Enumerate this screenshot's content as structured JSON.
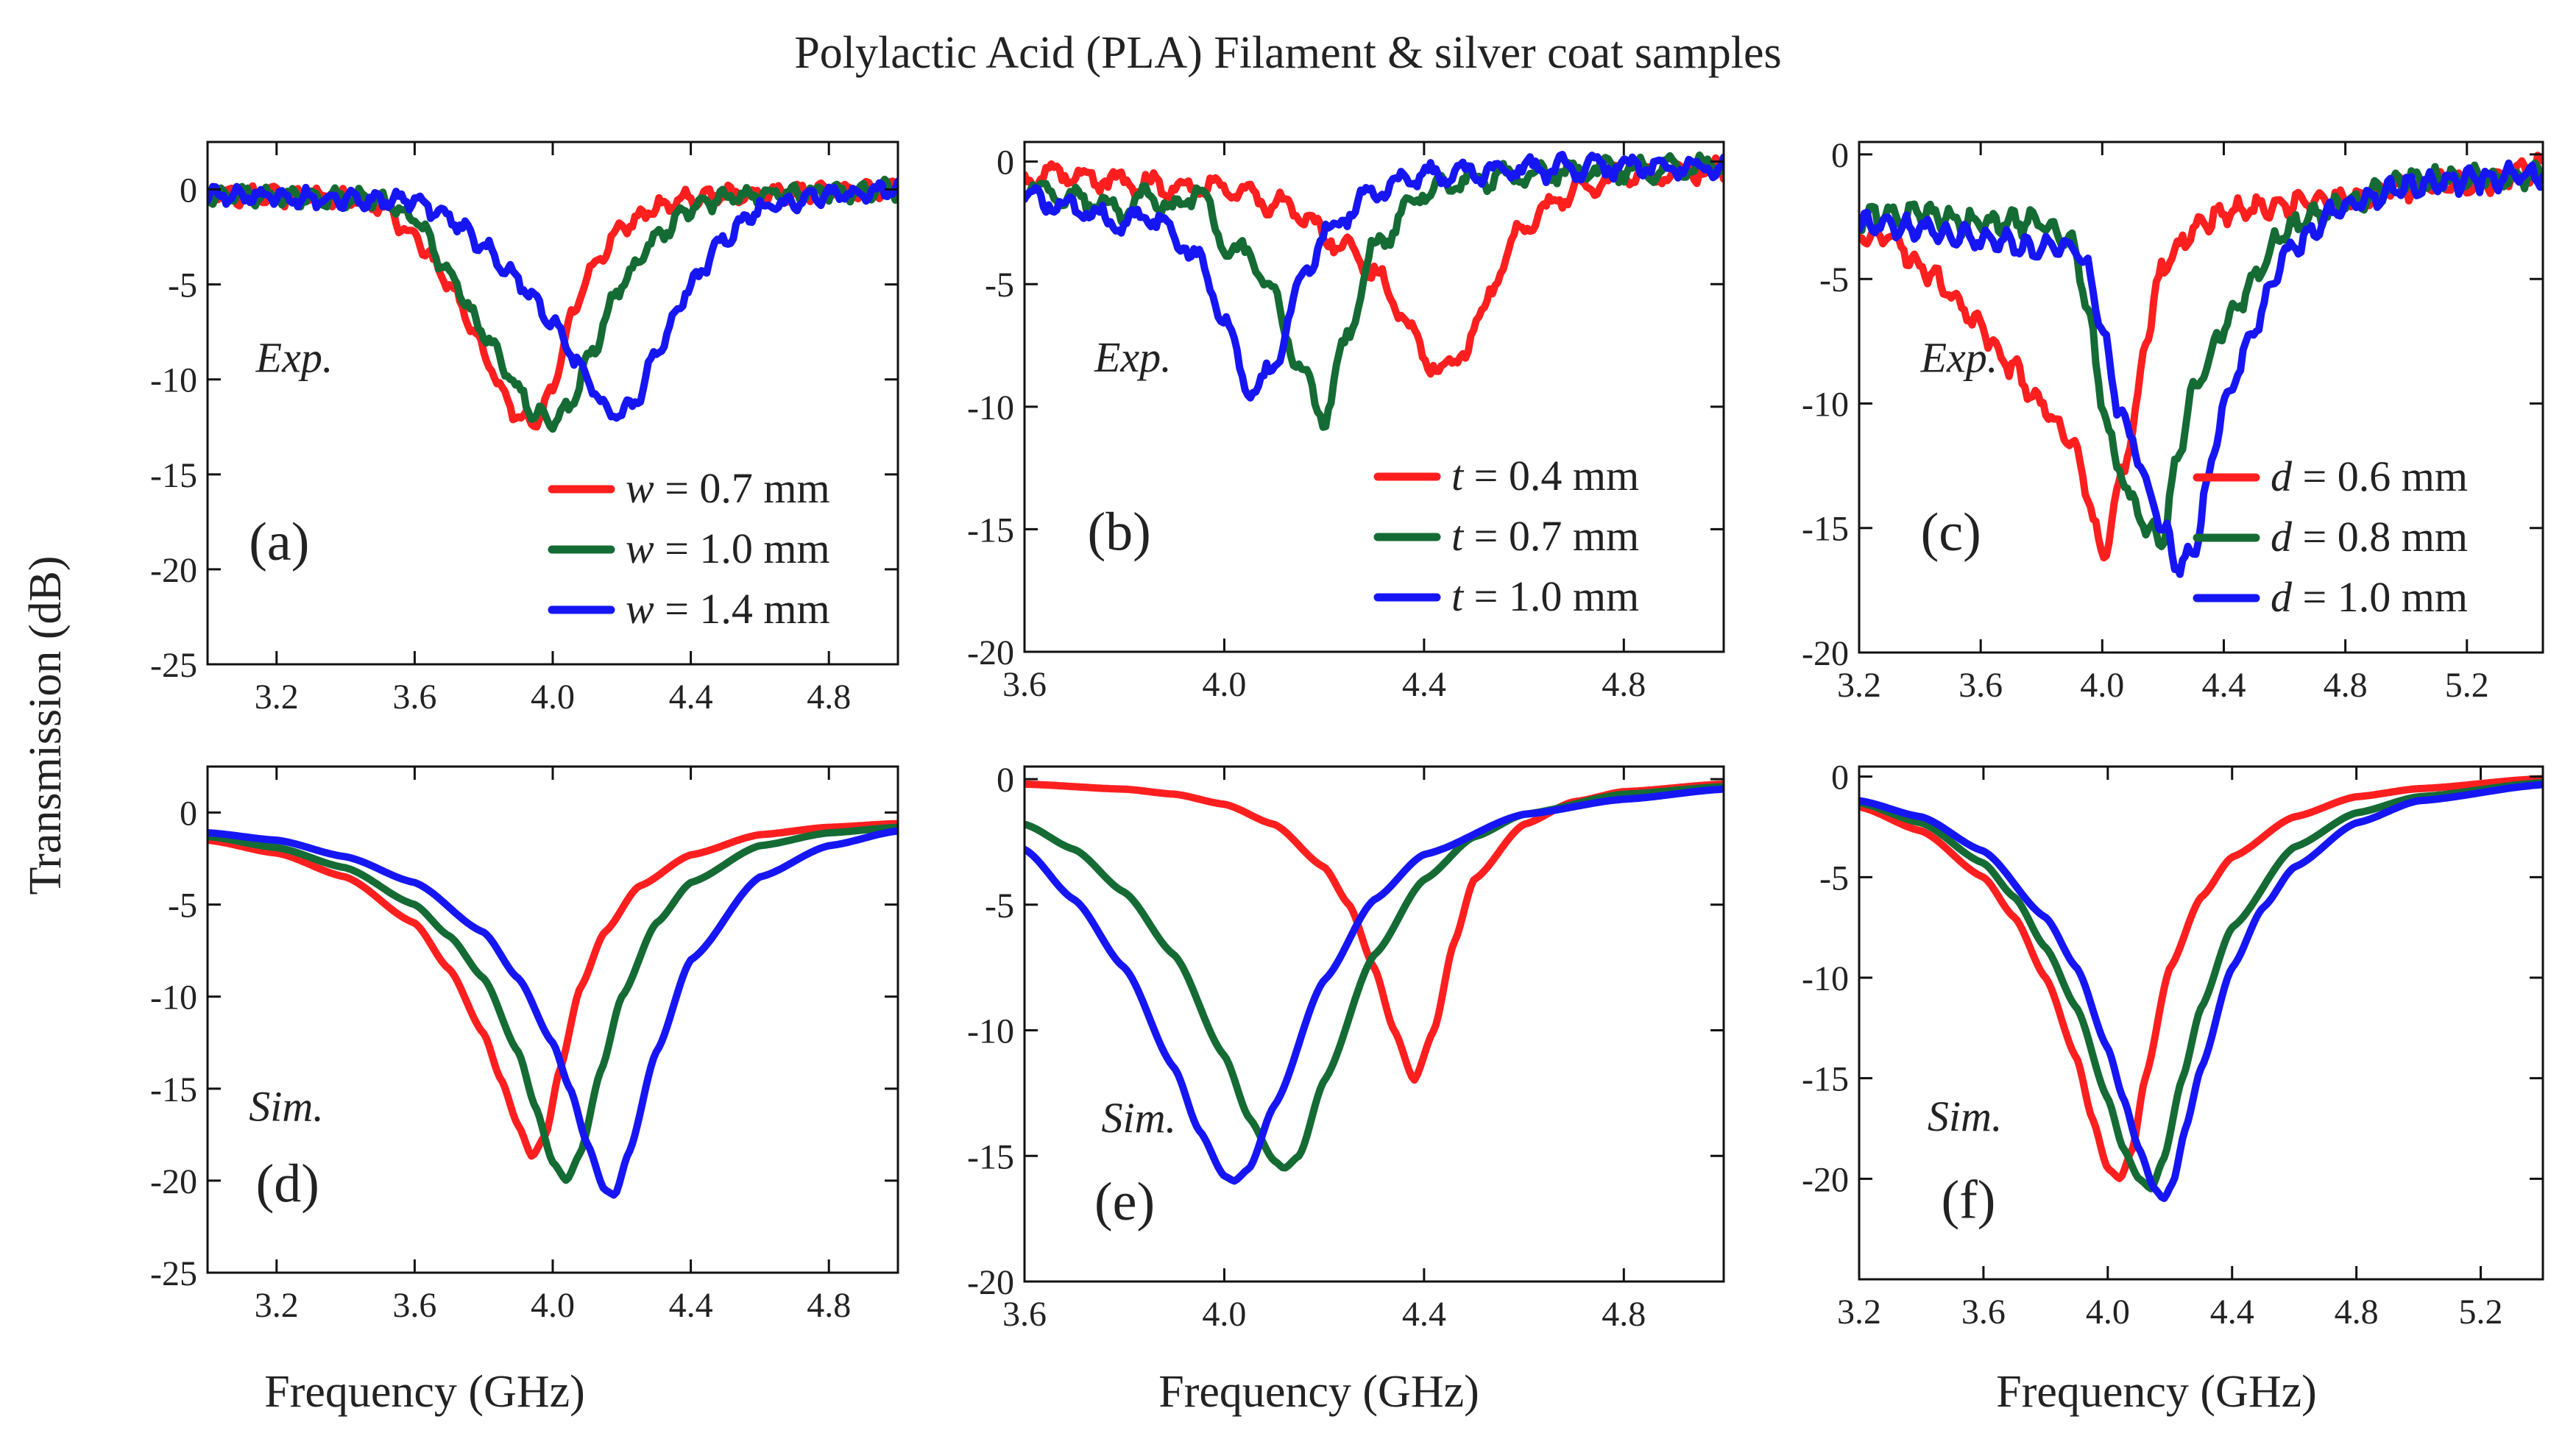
{
  "figure_title": "Polylactic Acid (PLA)  Filament & silver coat samples",
  "ylabel": "Transmission (dB)",
  "xlabel": "Frequency (GHz)",
  "colors": {
    "red": "#ff1f1f",
    "green": "#156b34",
    "blue": "#1616f5"
  },
  "chart_data": [
    {
      "id": "a",
      "type": "line",
      "label": "(a)",
      "note": "Exp.",
      "noisy": true,
      "xlim": [
        3.0,
        5.0
      ],
      "ylim": [
        -25,
        2.5
      ],
      "xticks": [
        3.2,
        3.6,
        4.0,
        4.4,
        4.8
      ],
      "yticks": [
        0,
        -5,
        -10,
        -15,
        -20,
        -25
      ],
      "legend": {
        "position": "bottom-right"
      },
      "series": [
        {
          "name": "0.7 mm",
          "var": "w",
          "color": "#ff1f1f",
          "x": [
            3.0,
            3.4,
            3.5,
            3.6,
            3.7,
            3.8,
            3.85,
            3.9,
            3.95,
            4.0,
            4.05,
            4.1,
            4.2,
            4.3,
            4.4,
            4.6,
            5.0
          ],
          "y": [
            -0.3,
            -0.4,
            -0.8,
            -2.5,
            -5.0,
            -8.5,
            -10.5,
            -12.0,
            -12.3,
            -10.5,
            -7.0,
            -4.5,
            -2.0,
            -0.9,
            -0.4,
            -0.2,
            0.0
          ]
        },
        {
          "name": "1.0 mm",
          "var": "w",
          "color": "#156b34",
          "x": [
            3.0,
            3.5,
            3.6,
            3.7,
            3.8,
            3.9,
            3.95,
            4.0,
            4.05,
            4.1,
            4.2,
            4.3,
            4.4,
            4.5,
            4.7,
            5.0
          ],
          "y": [
            -0.3,
            -0.5,
            -1.5,
            -4.5,
            -7.5,
            -10.5,
            -11.8,
            -12.2,
            -11.5,
            -9.0,
            -5.0,
            -2.5,
            -1.0,
            -0.4,
            -0.2,
            0.0
          ]
        },
        {
          "name": "1.4 mm",
          "var": "w",
          "color": "#1616f5",
          "x": [
            3.0,
            3.6,
            3.7,
            3.8,
            3.9,
            4.0,
            4.1,
            4.15,
            4.2,
            4.25,
            4.3,
            4.4,
            4.5,
            4.6,
            4.8,
            5.0
          ],
          "y": [
            -0.3,
            -0.6,
            -1.5,
            -3.0,
            -4.8,
            -7.0,
            -10.0,
            -11.5,
            -11.8,
            -11.0,
            -8.5,
            -5.0,
            -2.5,
            -1.0,
            -0.3,
            0.0
          ]
        }
      ]
    },
    {
      "id": "b",
      "type": "line",
      "label": "(b)",
      "note": "Exp.",
      "noisy": true,
      "xlim": [
        3.6,
        5.0
      ],
      "ylim": [
        -20,
        0.8
      ],
      "xticks": [
        3.6,
        4.0,
        4.4,
        4.8
      ],
      "yticks": [
        0,
        -5,
        -10,
        -15,
        -20
      ],
      "legend": {
        "position": "bottom-right"
      },
      "series": [
        {
          "name": "0.4 mm",
          "var": "t",
          "color": "#ff1f1f",
          "x": [
            3.6,
            3.7,
            3.8,
            3.9,
            4.0,
            4.1,
            4.15,
            4.2,
            4.25,
            4.3,
            4.35,
            4.4,
            4.45,
            4.5,
            4.55,
            4.6,
            4.7,
            4.8,
            5.0
          ],
          "y": [
            -0.6,
            -0.5,
            -0.9,
            -1.0,
            -1.0,
            -1.7,
            -2.1,
            -3.0,
            -3.5,
            -4.5,
            -6.0,
            -8.0,
            -8.6,
            -7.0,
            -4.5,
            -2.5,
            -1.2,
            -0.6,
            -0.3
          ]
        },
        {
          "name": "0.7 mm",
          "var": "t",
          "color": "#156b34",
          "x": [
            3.6,
            3.7,
            3.8,
            3.85,
            3.9,
            3.95,
            4.0,
            4.05,
            4.1,
            4.15,
            4.2,
            4.25,
            4.3,
            4.4,
            4.5,
            4.7,
            5.0
          ],
          "y": [
            -0.9,
            -1.5,
            -2.0,
            -1.4,
            -2.0,
            -1.0,
            -3.5,
            -3.8,
            -5.5,
            -8.5,
            -10.4,
            -7.0,
            -3.5,
            -1.2,
            -0.7,
            -0.4,
            -0.2
          ]
        },
        {
          "name": "1.0 mm",
          "var": "t",
          "color": "#1616f5",
          "x": [
            3.6,
            3.7,
            3.8,
            3.85,
            3.9,
            3.95,
            4.0,
            4.05,
            4.1,
            4.15,
            4.2,
            4.3,
            4.4,
            4.6,
            4.8,
            5.0
          ],
          "y": [
            -1.4,
            -1.9,
            -2.6,
            -2.2,
            -3.0,
            -4.0,
            -6.5,
            -9.5,
            -8.5,
            -5.0,
            -3.0,
            -1.2,
            -0.6,
            -0.3,
            -0.2,
            -0.2
          ]
        }
      ]
    },
    {
      "id": "c",
      "type": "line",
      "label": "(c)",
      "note": "Exp.",
      "noisy": true,
      "xlim": [
        3.2,
        5.45
      ],
      "ylim": [
        -20,
        0.5
      ],
      "xticks": [
        3.2,
        3.6,
        4.0,
        4.4,
        4.8,
        5.2
      ],
      "yticks": [
        0,
        -5,
        -10,
        -15,
        -20
      ],
      "legend": {
        "position": "bottom-right"
      },
      "series": [
        {
          "name": "0.6 mm",
          "var": "d",
          "color": "#ff1f1f",
          "x": [
            3.2,
            3.3,
            3.4,
            3.5,
            3.6,
            3.7,
            3.8,
            3.9,
            3.95,
            4.0,
            4.02,
            4.05,
            4.1,
            4.15,
            4.2,
            4.3,
            4.4,
            4.6,
            4.8,
            5.0,
            5.2,
            5.45
          ],
          "y": [
            -3.5,
            -3.2,
            -4.5,
            -5.5,
            -7.0,
            -8.5,
            -10.0,
            -11.5,
            -13.5,
            -16.2,
            -15.5,
            -13.5,
            -11.0,
            -7.0,
            -4.5,
            -3.0,
            -2.3,
            -2.0,
            -1.8,
            -1.3,
            -1.2,
            -0.5
          ]
        },
        {
          "name": "0.8 mm",
          "var": "d",
          "color": "#156b34",
          "x": [
            3.2,
            3.4,
            3.6,
            3.8,
            3.9,
            3.95,
            4.0,
            4.05,
            4.1,
            4.15,
            4.2,
            4.25,
            4.3,
            4.4,
            4.5,
            4.6,
            4.8,
            5.0,
            5.2,
            5.45
          ],
          "y": [
            -2.5,
            -2.4,
            -2.8,
            -2.7,
            -3.5,
            -6.0,
            -10.0,
            -12.5,
            -14.0,
            -15.0,
            -15.5,
            -12.0,
            -9.5,
            -7.0,
            -5.0,
            -3.0,
            -2.0,
            -1.0,
            -1.0,
            -0.8
          ]
        },
        {
          "name": "1.0 mm",
          "var": "d",
          "color": "#1616f5",
          "x": [
            3.2,
            3.4,
            3.6,
            3.8,
            3.9,
            3.95,
            4.0,
            4.05,
            4.1,
            4.15,
            4.2,
            4.25,
            4.3,
            4.35,
            4.4,
            4.5,
            4.6,
            4.8,
            5.0,
            5.2,
            5.45
          ],
          "y": [
            -2.8,
            -3.0,
            -3.4,
            -3.8,
            -3.7,
            -4.5,
            -7.0,
            -10.0,
            -11.5,
            -13.5,
            -15.0,
            -16.5,
            -16.0,
            -13.0,
            -10.0,
            -7.0,
            -4.0,
            -2.0,
            -1.3,
            -1.0,
            -0.8
          ]
        }
      ]
    },
    {
      "id": "d",
      "type": "line",
      "label": "(d)",
      "note": "Sim.",
      "xlim": [
        3.0,
        5.0
      ],
      "ylim": [
        -25,
        2.5
      ],
      "xticks": [
        3.2,
        3.6,
        4.0,
        4.4,
        4.8
      ],
      "yticks": [
        0,
        -5,
        -10,
        -15,
        -20,
        -25
      ],
      "series": [
        {
          "name": "0.7 mm",
          "color": "#ff1f1f",
          "x": [
            3.0,
            3.2,
            3.4,
            3.6,
            3.7,
            3.8,
            3.85,
            3.9,
            3.94,
            3.98,
            4.02,
            4.08,
            4.15,
            4.25,
            4.4,
            4.6,
            4.8,
            5.0
          ],
          "y": [
            -1.5,
            -2.2,
            -3.5,
            -6.0,
            -8.5,
            -12.0,
            -14.5,
            -17.0,
            -18.7,
            -17.5,
            -14.0,
            -9.5,
            -6.5,
            -4.0,
            -2.3,
            -1.2,
            -0.8,
            -0.6
          ]
        },
        {
          "name": "1.0 mm",
          "color": "#156b34",
          "x": [
            3.0,
            3.2,
            3.4,
            3.6,
            3.7,
            3.8,
            3.9,
            3.95,
            4.0,
            4.04,
            4.08,
            4.14,
            4.2,
            4.3,
            4.4,
            4.6,
            4.8,
            5.0
          ],
          "y": [
            -1.3,
            -1.9,
            -3.0,
            -5.0,
            -6.7,
            -9.0,
            -13.0,
            -16.0,
            -19.0,
            -20.0,
            -18.5,
            -14.0,
            -10.0,
            -6.0,
            -3.8,
            -1.8,
            -1.1,
            -0.8
          ]
        },
        {
          "name": "1.4 mm",
          "color": "#1616f5",
          "x": [
            3.0,
            3.2,
            3.4,
            3.6,
            3.8,
            3.9,
            4.0,
            4.05,
            4.1,
            4.15,
            4.18,
            4.22,
            4.3,
            4.4,
            4.6,
            4.8,
            5.0
          ],
          "y": [
            -1.1,
            -1.5,
            -2.4,
            -3.8,
            -6.5,
            -9.0,
            -12.5,
            -15.0,
            -18.0,
            -20.5,
            -20.8,
            -18.5,
            -13.0,
            -8.0,
            -3.5,
            -1.8,
            -1.0
          ]
        }
      ]
    },
    {
      "id": "e",
      "type": "line",
      "label": "(e)",
      "note": "Sim.",
      "xlim": [
        3.6,
        5.0
      ],
      "ylim": [
        -20,
        0.5
      ],
      "xticks": [
        3.6,
        4.0,
        4.4,
        4.8
      ],
      "yticks": [
        0,
        -5,
        -10,
        -15,
        -20
      ],
      "series": [
        {
          "name": "0.4 mm",
          "color": "#ff1f1f",
          "x": [
            3.6,
            3.8,
            3.9,
            4.0,
            4.1,
            4.2,
            4.25,
            4.3,
            4.34,
            4.38,
            4.42,
            4.46,
            4.5,
            4.6,
            4.7,
            4.8,
            5.0
          ],
          "y": [
            -0.2,
            -0.4,
            -0.6,
            -1.0,
            -1.8,
            -3.5,
            -5.0,
            -7.5,
            -10.0,
            -12.0,
            -10.0,
            -6.5,
            -4.0,
            -1.8,
            -0.9,
            -0.5,
            -0.2
          ]
        },
        {
          "name": "0.7 mm",
          "color": "#156b34",
          "x": [
            3.6,
            3.7,
            3.8,
            3.9,
            4.0,
            4.05,
            4.1,
            4.12,
            4.15,
            4.2,
            4.3,
            4.4,
            4.5,
            4.6,
            4.8,
            5.0
          ],
          "y": [
            -1.8,
            -2.8,
            -4.5,
            -7.0,
            -11.0,
            -13.5,
            -15.2,
            -15.5,
            -15.0,
            -12.0,
            -7.0,
            -4.0,
            -2.3,
            -1.4,
            -0.6,
            -0.3
          ]
        },
        {
          "name": "1.0 mm",
          "color": "#1616f5",
          "x": [
            3.6,
            3.7,
            3.8,
            3.9,
            3.95,
            4.0,
            4.02,
            4.05,
            4.1,
            4.2,
            4.3,
            4.4,
            4.6,
            4.8,
            5.0
          ],
          "y": [
            -2.8,
            -4.8,
            -7.5,
            -11.5,
            -14.0,
            -15.8,
            -16.0,
            -15.5,
            -13.0,
            -8.0,
            -4.8,
            -3.0,
            -1.4,
            -0.8,
            -0.4
          ]
        }
      ]
    },
    {
      "id": "f",
      "type": "line",
      "label": "(f)",
      "note": "Sim.",
      "xlim": [
        3.2,
        5.4
      ],
      "ylim": [
        -25,
        0.5
      ],
      "xticks": [
        3.2,
        3.6,
        4.0,
        4.4,
        4.8,
        5.2
      ],
      "yticks": [
        0,
        -5,
        -10,
        -15,
        -20
      ],
      "series": [
        {
          "name": "0.6 mm",
          "color": "#ff1f1f",
          "x": [
            3.2,
            3.4,
            3.6,
            3.7,
            3.8,
            3.9,
            3.95,
            4.0,
            4.04,
            4.08,
            4.12,
            4.2,
            4.3,
            4.4,
            4.6,
            4.8,
            5.0,
            5.4
          ],
          "y": [
            -1.5,
            -2.7,
            -5.0,
            -7.0,
            -10.0,
            -14.0,
            -17.0,
            -19.5,
            -20.0,
            -18.5,
            -15.0,
            -9.5,
            -6.0,
            -4.0,
            -2.0,
            -1.0,
            -0.6,
            -0.1
          ]
        },
        {
          "name": "0.8 mm",
          "color": "#156b34",
          "x": [
            3.2,
            3.4,
            3.6,
            3.7,
            3.8,
            3.9,
            4.0,
            4.05,
            4.1,
            4.14,
            4.18,
            4.24,
            4.3,
            4.4,
            4.6,
            4.8,
            5.0,
            5.4
          ],
          "y": [
            -1.3,
            -2.3,
            -4.3,
            -6.0,
            -8.5,
            -11.5,
            -16.0,
            -18.5,
            -20.0,
            -20.5,
            -19.0,
            -15.0,
            -11.5,
            -7.5,
            -3.5,
            -1.8,
            -1.0,
            -0.3
          ]
        },
        {
          "name": "1.0 mm",
          "color": "#1616f5",
          "x": [
            3.2,
            3.4,
            3.6,
            3.8,
            3.9,
            4.0,
            4.05,
            4.1,
            4.15,
            4.18,
            4.21,
            4.25,
            4.3,
            4.4,
            4.5,
            4.6,
            4.8,
            5.0,
            5.4
          ],
          "y": [
            -1.2,
            -2.0,
            -3.7,
            -7.0,
            -9.5,
            -13.5,
            -16.0,
            -18.5,
            -20.5,
            -21.0,
            -20.2,
            -17.5,
            -14.5,
            -9.5,
            -6.5,
            -4.5,
            -2.3,
            -1.2,
            -0.4
          ]
        }
      ]
    }
  ]
}
